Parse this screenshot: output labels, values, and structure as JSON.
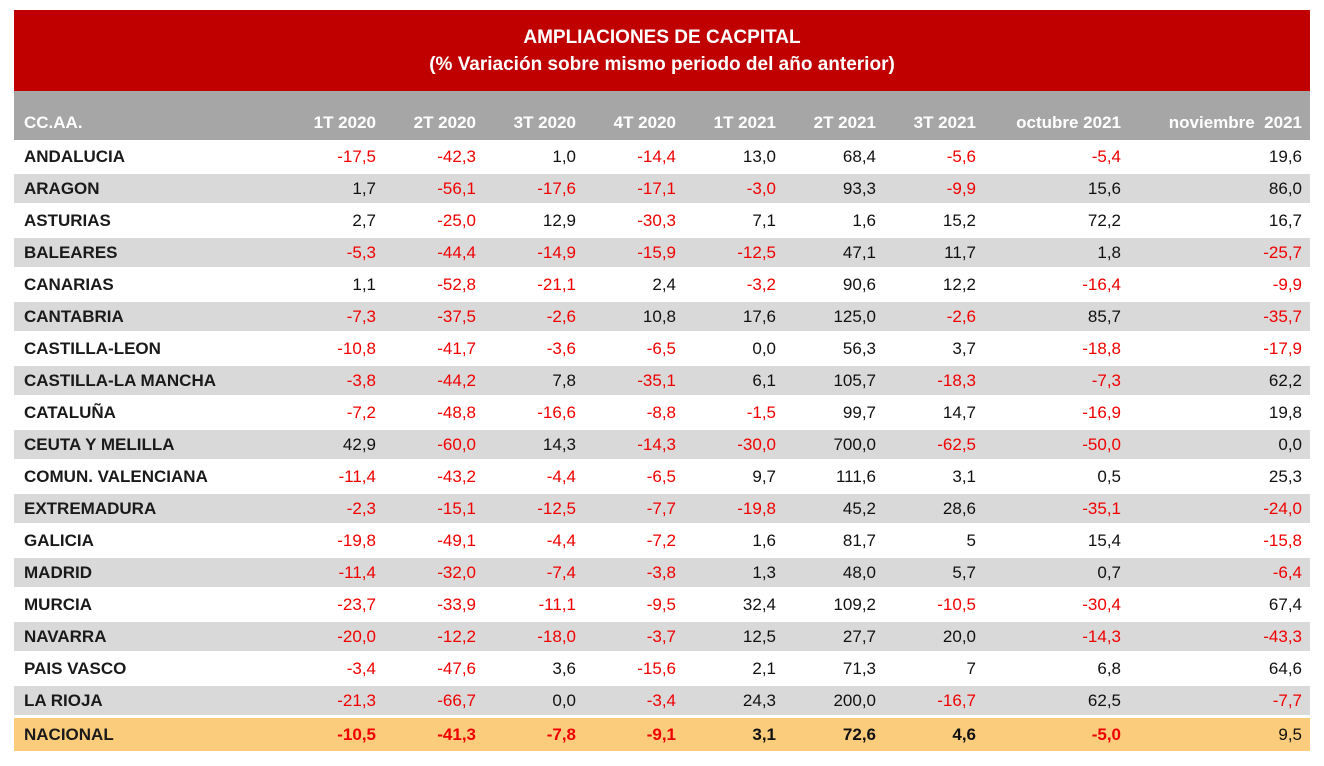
{
  "title": {
    "line1": "AMPLIACIONES DE CACPITAL",
    "line2": "(%  Variación sobre mismo periodo del año anterior)"
  },
  "colors": {
    "header_red": "#c00000",
    "column_header_gray": "#a6a6a6",
    "row_stripe_gray": "#d9d9d9",
    "total_row_orange": "#fbcc7c",
    "negative_value_red": "#f00000",
    "positive_value_black": "#111111"
  },
  "table": {
    "row_header_label": "CC.AA.",
    "columns": [
      "1T 2020",
      "2T 2020",
      "3T 2020",
      "4T 2020",
      "1T 2021",
      "2T 2021",
      "3T 2021",
      "octubre 2021",
      "noviembre  2021"
    ],
    "rows": [
      {
        "name": "ANDALUCIA",
        "values": [
          "-17,5",
          "-42,3",
          "1,0",
          "-14,4",
          "13,0",
          "68,4",
          "-5,6",
          "-5,4",
          "19,6"
        ]
      },
      {
        "name": "ARAGON",
        "values": [
          "1,7",
          "-56,1",
          "-17,6",
          "-17,1",
          "-3,0",
          "93,3",
          "-9,9",
          "15,6",
          "86,0"
        ]
      },
      {
        "name": "ASTURIAS",
        "values": [
          "2,7",
          "-25,0",
          "12,9",
          "-30,3",
          "7,1",
          "1,6",
          "15,2",
          "72,2",
          "16,7"
        ]
      },
      {
        "name": "BALEARES",
        "values": [
          "-5,3",
          "-44,4",
          "-14,9",
          "-15,9",
          "-12,5",
          "47,1",
          "11,7",
          "1,8",
          "-25,7"
        ]
      },
      {
        "name": "CANARIAS",
        "values": [
          "1,1",
          "-52,8",
          "-21,1",
          "2,4",
          "-3,2",
          "90,6",
          "12,2",
          "-16,4",
          "-9,9"
        ]
      },
      {
        "name": "CANTABRIA",
        "values": [
          "-7,3",
          "-37,5",
          "-2,6",
          "10,8",
          "17,6",
          "125,0",
          "-2,6",
          "85,7",
          "-35,7"
        ]
      },
      {
        "name": "CASTILLA-LEON",
        "values": [
          "-10,8",
          "-41,7",
          "-3,6",
          "-6,5",
          "0,0",
          "56,3",
          "3,7",
          "-18,8",
          "-17,9"
        ]
      },
      {
        "name": "CASTILLA-LA MANCHA",
        "values": [
          "-3,8",
          "-44,2",
          "7,8",
          "-35,1",
          "6,1",
          "105,7",
          "-18,3",
          "-7,3",
          "62,2"
        ]
      },
      {
        "name": "CATALUÑA",
        "values": [
          "-7,2",
          "-48,8",
          "-16,6",
          "-8,8",
          "-1,5",
          "99,7",
          "14,7",
          "-16,9",
          "19,8"
        ]
      },
      {
        "name": "CEUTA Y MELILLA",
        "values": [
          "42,9",
          "-60,0",
          "14,3",
          "-14,3",
          "-30,0",
          "700,0",
          "-62,5",
          "-50,0",
          "0,0"
        ]
      },
      {
        "name": "COMUN. VALENCIANA",
        "values": [
          "-11,4",
          "-43,2",
          "-4,4",
          "-6,5",
          "9,7",
          "111,6",
          "3,1",
          "0,5",
          "25,3"
        ]
      },
      {
        "name": "EXTREMADURA",
        "values": [
          "-2,3",
          "-15,1",
          "-12,5",
          "-7,7",
          "-19,8",
          "45,2",
          "28,6",
          "-35,1",
          "-24,0"
        ]
      },
      {
        "name": "GALICIA",
        "values": [
          "-19,8",
          "-49,1",
          "-4,4",
          "-7,2",
          "1,6",
          "81,7",
          "5",
          "15,4",
          "-15,8"
        ]
      },
      {
        "name": "MADRID",
        "values": [
          "-11,4",
          "-32,0",
          "-7,4",
          "-3,8",
          "1,3",
          "48,0",
          "5,7",
          "0,7",
          "-6,4"
        ]
      },
      {
        "name": "MURCIA",
        "values": [
          "-23,7",
          "-33,9",
          "-11,1",
          "-9,5",
          "32,4",
          "109,2",
          "-10,5",
          "-30,4",
          "67,4"
        ]
      },
      {
        "name": "NAVARRA",
        "values": [
          "-20,0",
          "-12,2",
          "-18,0",
          "-3,7",
          "12,5",
          "27,7",
          "20,0",
          "-14,3",
          "-43,3"
        ]
      },
      {
        "name": "PAIS VASCO",
        "values": [
          "-3,4",
          "-47,6",
          "3,6",
          "-15,6",
          "2,1",
          "71,3",
          "7",
          "6,8",
          "64,6"
        ]
      },
      {
        "name": "LA RIOJA",
        "values": [
          "-21,3",
          "-66,7",
          "0,0",
          "-3,4",
          "24,3",
          "200,0",
          "-16,7",
          "62,5",
          "-7,7"
        ]
      }
    ],
    "total_row": {
      "name": "NACIONAL",
      "values": [
        "-10,5",
        "-41,3",
        "-7,8",
        "-9,1",
        "3,1",
        "72,6",
        "4,6",
        "-5,0",
        "9,5"
      ]
    }
  },
  "chart_data": {
    "type": "table",
    "title": "AMPLIACIONES DE CACPITAL",
    "subtitle": "(% Variación sobre mismo periodo del año anterior)",
    "unit": "% year-over-year variation",
    "columns": [
      "CC.AA.",
      "1T 2020",
      "2T 2020",
      "3T 2020",
      "4T 2020",
      "1T 2021",
      "2T 2021",
      "3T 2021",
      "octubre 2021",
      "noviembre 2021"
    ],
    "rows": [
      [
        "ANDALUCIA",
        -17.5,
        -42.3,
        1.0,
        -14.4,
        13.0,
        68.4,
        -5.6,
        -5.4,
        19.6
      ],
      [
        "ARAGON",
        1.7,
        -56.1,
        -17.6,
        -17.1,
        -3.0,
        93.3,
        -9.9,
        15.6,
        86.0
      ],
      [
        "ASTURIAS",
        2.7,
        -25.0,
        12.9,
        -30.3,
        7.1,
        1.6,
        15.2,
        72.2,
        16.7
      ],
      [
        "BALEARES",
        -5.3,
        -44.4,
        -14.9,
        -15.9,
        -12.5,
        47.1,
        11.7,
        1.8,
        -25.7
      ],
      [
        "CANARIAS",
        1.1,
        -52.8,
        -21.1,
        2.4,
        -3.2,
        90.6,
        12.2,
        -16.4,
        -9.9
      ],
      [
        "CANTABRIA",
        -7.3,
        -37.5,
        -2.6,
        10.8,
        17.6,
        125.0,
        -2.6,
        85.7,
        -35.7
      ],
      [
        "CASTILLA-LEON",
        -10.8,
        -41.7,
        -3.6,
        -6.5,
        0.0,
        56.3,
        3.7,
        -18.8,
        -17.9
      ],
      [
        "CASTILLA-LA MANCHA",
        -3.8,
        -44.2,
        7.8,
        -35.1,
        6.1,
        105.7,
        -18.3,
        -7.3,
        62.2
      ],
      [
        "CATALUÑA",
        -7.2,
        -48.8,
        -16.6,
        -8.8,
        -1.5,
        99.7,
        14.7,
        -16.9,
        19.8
      ],
      [
        "CEUTA Y MELILLA",
        42.9,
        -60.0,
        14.3,
        -14.3,
        -30.0,
        700.0,
        -62.5,
        -50.0,
        0.0
      ],
      [
        "COMUN. VALENCIANA",
        -11.4,
        -43.2,
        -4.4,
        -6.5,
        9.7,
        111.6,
        3.1,
        0.5,
        25.3
      ],
      [
        "EXTREMADURA",
        -2.3,
        -15.1,
        -12.5,
        -7.7,
        -19.8,
        45.2,
        28.6,
        -35.1,
        -24.0
      ],
      [
        "GALICIA",
        -19.8,
        -49.1,
        -4.4,
        -7.2,
        1.6,
        81.7,
        5,
        15.4,
        -15.8
      ],
      [
        "MADRID",
        -11.4,
        -32.0,
        -7.4,
        -3.8,
        1.3,
        48.0,
        5.7,
        0.7,
        -6.4
      ],
      [
        "MURCIA",
        -23.7,
        -33.9,
        -11.1,
        -9.5,
        32.4,
        109.2,
        -10.5,
        -30.4,
        67.4
      ],
      [
        "NAVARRA",
        -20.0,
        -12.2,
        -18.0,
        -3.7,
        12.5,
        27.7,
        20.0,
        -14.3,
        -43.3
      ],
      [
        "PAIS VASCO",
        -3.4,
        -47.6,
        3.6,
        -15.6,
        2.1,
        71.3,
        7,
        6.8,
        64.6
      ],
      [
        "LA RIOJA",
        -21.3,
        -66.7,
        0.0,
        -3.4,
        24.3,
        200.0,
        -16.7,
        62.5,
        -7.7
      ],
      [
        "NACIONAL",
        -10.5,
        -41.3,
        -7.8,
        -9.1,
        3.1,
        72.6,
        4.6,
        -5.0,
        9.5
      ]
    ],
    "notes": "Negative values shown in red; NACIONAL total row highlighted orange and bold; rows alternate white / light gray."
  }
}
